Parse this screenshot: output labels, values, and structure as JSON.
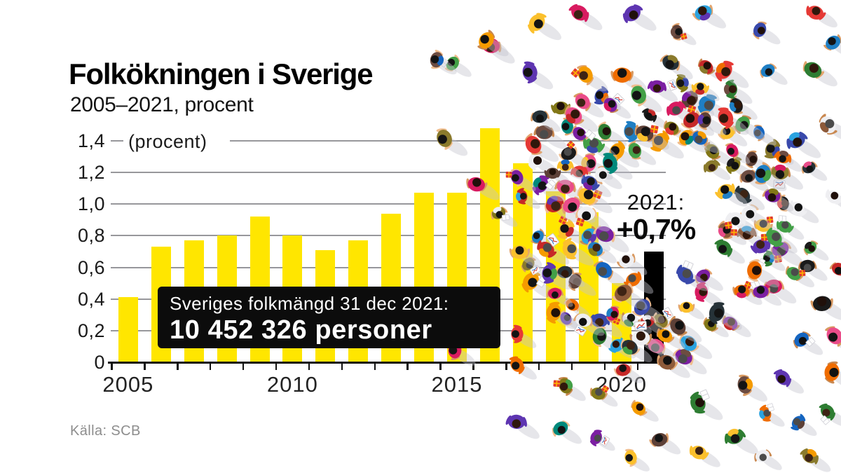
{
  "header": {
    "title": "Folkökningen i Sverige",
    "subtitle": "2005–2021, procent"
  },
  "chart_data": {
    "type": "bar",
    "title": "Folkökningen i Sverige",
    "subtitle": "2005–2021, procent",
    "unit_label": "(procent)",
    "categories": [
      "2005",
      "2006",
      "2007",
      "2008",
      "2009",
      "2010",
      "2011",
      "2012",
      "2013",
      "2014",
      "2015",
      "2016",
      "2017",
      "2018",
      "2019",
      "2020",
      "2021"
    ],
    "values": [
      0.41,
      0.73,
      0.77,
      0.8,
      0.92,
      0.8,
      0.71,
      0.77,
      0.94,
      1.07,
      1.07,
      1.48,
      1.26,
      1.08,
      0.95,
      0.5,
      0.7
    ],
    "bar_color": "#ffe600",
    "highlight_category": "2021",
    "highlight_color": "#000000",
    "ylabel": "procent",
    "ylim": [
      0,
      1.4
    ],
    "ytick_step": 0.2,
    "ytick_labels": [
      "0",
      "0,2",
      "0,4",
      "0,6",
      "0,8",
      "1,0",
      "1,2",
      "1,4"
    ],
    "xtick_labels_shown": [
      "2005",
      "2010",
      "2015",
      "2020"
    ],
    "grid": true,
    "legend": false
  },
  "annotations": {
    "population_box": {
      "line1": "Sveriges folkmängd 31 dec 2021:",
      "line2": "10 452 326 personer"
    },
    "highlight_callout": {
      "year_label": "2021:",
      "value_label": "+0,7%"
    }
  },
  "footer": {
    "source": "Källa: SCB"
  },
  "colors": {
    "background": "#ffffff",
    "bar_yellow": "#ffe600",
    "highlight_black": "#000000",
    "grid_gray": "#97979b",
    "text_black": "#1a1a1a",
    "source_gray": "#8d8d8d",
    "callout_box_bg": "#0c0c0c",
    "callout_box_text": "#ffffff"
  },
  "illustration": {
    "name": "crowd-of-people-top-view",
    "shadow": "#c4c4cc",
    "palette": [
      "#1f7fc4",
      "#1565c0",
      "#2ba3e0",
      "#3949ab",
      "#c62828",
      "#e53935",
      "#d81b60",
      "#ea4c89",
      "#f59b00",
      "#fbc02d",
      "#ef6c00",
      "#00897b",
      "#43a047",
      "#2e7d32",
      "#8a7a2c",
      "#827717",
      "#6d4c41",
      "#8d5a3a",
      "#5d4037",
      "#1a1a1a",
      "#263238",
      "#efeff2",
      "#5e35b1",
      "#7b1fa2"
    ]
  }
}
